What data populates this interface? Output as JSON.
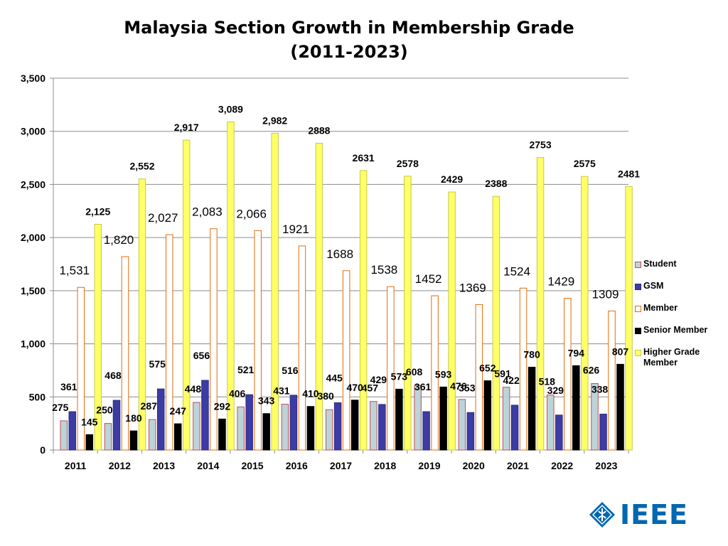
{
  "chart_data": {
    "type": "bar",
    "title": "Malaysia Section Growth in Membership Grade",
    "subtitle": "(2011-2023)",
    "xlabel": "",
    "ylabel": "",
    "ylim": [
      0,
      3500
    ],
    "yticks": [
      "0",
      "500",
      "1,000",
      "1,500",
      "2,000",
      "2,500",
      "3,000",
      "3,500"
    ],
    "grid": true,
    "legend_position": "right",
    "categories": [
      "2011",
      "2012",
      "2013",
      "2014",
      "2015",
      "2016",
      "2017",
      "2018",
      "2019",
      "2020",
      "2021",
      "2022",
      "2023"
    ],
    "series": [
      {
        "name": "Student",
        "color": "#bcd4d9",
        "border": "#c0504d",
        "values": [
          275,
          250,
          287,
          448,
          406,
          431,
          380,
          457,
          608,
          476,
          591,
          518,
          626
        ],
        "labels": [
          "275",
          "250",
          "287",
          "448",
          "406",
          "431",
          "380",
          "457",
          "608",
          "476",
          "591",
          "518",
          "626"
        ]
      },
      {
        "name": "GSM",
        "color": "#3c3ca4",
        "border": "#2c2c80",
        "values": [
          361,
          468,
          575,
          656,
          521,
          516,
          445,
          429,
          361,
          353,
          422,
          329,
          338
        ],
        "labels": [
          "361",
          "468",
          "575",
          "656",
          "521",
          "516",
          "445",
          "429",
          "361",
          "353",
          "422",
          "329",
          "338"
        ]
      },
      {
        "name": "Member",
        "color": "#ffffff",
        "border": "#e46c0a",
        "values": [
          1531,
          1820,
          2027,
          2083,
          2066,
          1921,
          1688,
          1538,
          1452,
          1369,
          1524,
          1429,
          1309
        ],
        "labels": [
          "1,531",
          "1,820",
          "2,027",
          "2,083",
          "2,066",
          "1921",
          "1688",
          "1538",
          "1452",
          "1369",
          "1524",
          "1429",
          "1309"
        ]
      },
      {
        "name": "Senior Member",
        "color": "#000000",
        "border": "#000000",
        "values": [
          145,
          180,
          247,
          292,
          343,
          410,
          470,
          573,
          593,
          652,
          780,
          794,
          807
        ],
        "labels": [
          "145",
          "180",
          "247",
          "292",
          "343",
          "410",
          "470",
          "573",
          "593",
          "652",
          "780",
          "794",
          "807"
        ]
      },
      {
        "name": "Higher Grade Member",
        "color": "#ffff66",
        "border": "#c8c850",
        "values": [
          2125,
          2552,
          2917,
          3089,
          2982,
          2888,
          2631,
          2578,
          2429,
          2388,
          2753,
          2575,
          2481
        ],
        "labels": [
          "2,125",
          "2,552",
          "2,917",
          "3,089",
          "2,982",
          "2888",
          "2631",
          "2578",
          "2429",
          "2388",
          "2753",
          "2575",
          "2481"
        ]
      }
    ]
  },
  "logo": {
    "text": "IEEE",
    "color": "#0067b1"
  }
}
